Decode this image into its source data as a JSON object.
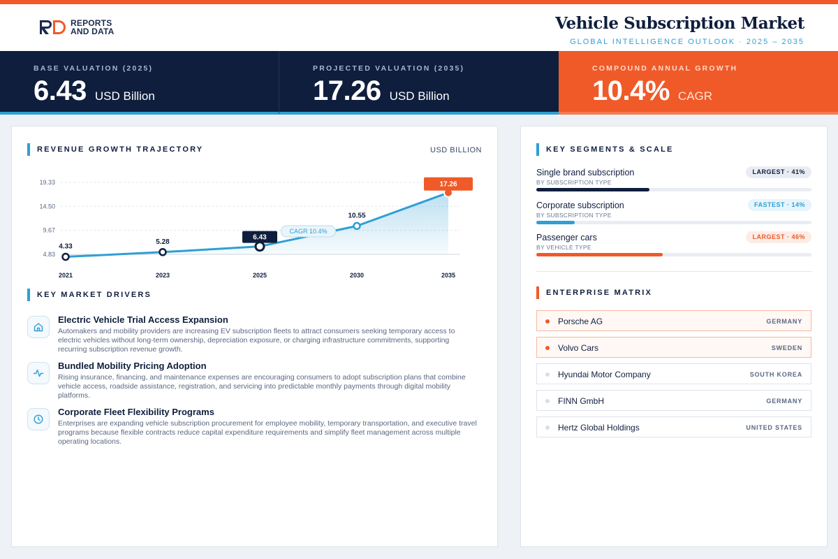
{
  "brand": {
    "logo_line1": "REPORTS",
    "logo_line2": "AND DATA"
  },
  "header": {
    "title": "Vehicle Subscription Market",
    "subtitle": "GLOBAL INTELLIGENCE OUTLOOK  ·  2025 – 2035"
  },
  "stats": [
    {
      "label": "BASE VALUATION (2025)",
      "value": "6.43",
      "unit": "USD Billion"
    },
    {
      "label": "PROJECTED VALUATION (2035)",
      "value": "17.26",
      "unit": "USD Billion"
    },
    {
      "label": "COMPOUND ANNUAL GROWTH",
      "value": "10.4%",
      "unit": "CAGR"
    }
  ],
  "growth": {
    "title": "REVENUE GROWTH TRAJECTORY",
    "unit": "USD BILLION"
  },
  "chart_data": {
    "type": "line",
    "title": "",
    "x": [
      "2021",
      "2023",
      "2025",
      "2030",
      "2035"
    ],
    "values": [
      4.33,
      5.28,
      6.43,
      10.55,
      17.26
    ],
    "value_labels": [
      "4.33",
      "5.28",
      "6.43",
      "10.55",
      "17.26"
    ],
    "y_ticks": [
      "19.33",
      "14.50",
      "9.67",
      "4.83"
    ],
    "ylim": [
      4.83,
      19.33
    ],
    "annotation": "CAGR 10.4%",
    "highlight_points": [
      "2025",
      "2035"
    ],
    "grid": true,
    "area_fill": true,
    "colors": {
      "line": "#2f9fd4",
      "base_badge": "#0f1e3d",
      "end_badge": "#f05a28"
    }
  },
  "drivers": {
    "title": "KEY MARKET DRIVERS",
    "items": [
      {
        "icon": "home-icon",
        "title": "Electric Vehicle Trial Access Expansion",
        "desc": "Automakers and mobility providers are increasing EV subscription fleets to attract consumers seeking temporary access to electric vehicles without long-term ownership, depreciation exposure, or charging infrastructure commitments, supporting recurring subscription revenue growth."
      },
      {
        "icon": "activity-icon",
        "title": "Bundled Mobility Pricing Adoption",
        "desc": "Rising insurance, financing, and maintenance expenses are encouraging consumers to adopt subscription plans that combine vehicle access, roadside assistance, registration, and servicing into predictable monthly payments through digital mobility platforms."
      },
      {
        "icon": "clock-icon",
        "title": "Corporate Fleet Flexibility Programs",
        "desc": "Enterprises are expanding vehicle subscription procurement for employee mobility, temporary transportation, and executive travel programs because flexible contracts reduce capital expenditure requirements and simplify fleet management across multiple operating locations."
      }
    ]
  },
  "segments": {
    "title": "KEY SEGMENTS & SCALE",
    "items": [
      {
        "name": "Single brand subscription",
        "type": "BY SUBSCRIPTION TYPE",
        "badge": "LARGEST · 41%",
        "share": 41,
        "color": "#0f1e3d"
      },
      {
        "name": "Corporate subscription",
        "type": "BY SUBSCRIPTION TYPE",
        "badge": "FASTEST · 14%",
        "share": 14,
        "color": "#2f9fd4"
      },
      {
        "name": "Passenger cars",
        "type": "BY VEHICLE TYPE",
        "badge": "LARGEST · 46%",
        "share": 46,
        "color": "#f05a28"
      }
    ]
  },
  "enterprise": {
    "title": "ENTERPRISE MATRIX",
    "items": [
      {
        "name": "Porsche AG",
        "country": "GERMANY",
        "highlight": true
      },
      {
        "name": "Volvo Cars",
        "country": "SWEDEN",
        "highlight": true
      },
      {
        "name": "Hyundai Motor Company",
        "country": "SOUTH KOREA",
        "highlight": false
      },
      {
        "name": "FINN GmbH",
        "country": "GERMANY",
        "highlight": false
      },
      {
        "name": "Hertz Global Holdings",
        "country": "UNITED STATES",
        "highlight": false
      }
    ]
  }
}
